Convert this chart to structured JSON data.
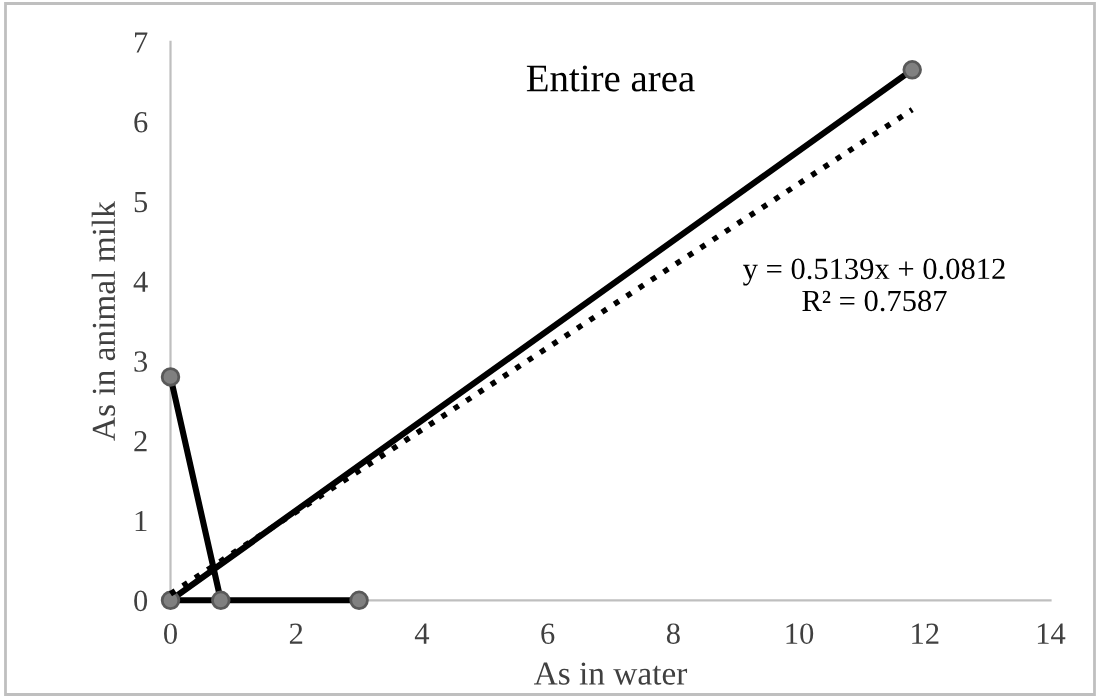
{
  "chart_data": {
    "type": "line",
    "title": "Entire area",
    "xlabel": "As in water",
    "ylabel": "As in animal milk",
    "series": [
      {
        "color": "#000000",
        "marker": "circle",
        "line_style": "solid",
        "x": [
          0,
          0.8,
          3,
          0,
          11.8
        ],
        "values": [
          2.8,
          0,
          0,
          0,
          6.65
        ]
      },
      {
        "color": "#000000",
        "marker": "none",
        "line_style": "dotted",
        "x": [
          0,
          11.8
        ],
        "values": [
          0.08,
          6.15
        ]
      }
    ],
    "annotations": [
      "y = 0.5139x + 0.0812\nR² = 0.7587"
    ],
    "xlim": [
      0,
      14
    ],
    "xticks": [
      0,
      2,
      4,
      6,
      8,
      10,
      12,
      14
    ],
    "ylim": [
      0,
      7
    ],
    "yticks": [
      0,
      1,
      2,
      3,
      4,
      5,
      6,
      7
    ],
    "grid": false,
    "legend": false
  }
}
